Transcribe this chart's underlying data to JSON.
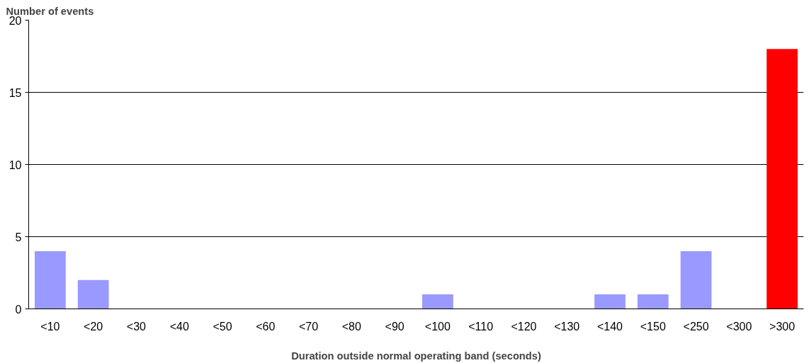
{
  "chart_data": {
    "type": "bar",
    "ylabel": "Number of events",
    "xlabel": "Duration outside normal operating band (seconds)",
    "categories": [
      "<10",
      "<20",
      "<30",
      "<40",
      "<50",
      "<60",
      "<70",
      "<80",
      "<90",
      "<100",
      "<110",
      "<120",
      "<130",
      "<140",
      "<150",
      "<250",
      "<300",
      ">300"
    ],
    "values": [
      4,
      2,
      0,
      0,
      0,
      0,
      0,
      0,
      0,
      1,
      0,
      0,
      0,
      1,
      1,
      4,
      0,
      18
    ],
    "colors": [
      "#9999ff",
      "#9999ff",
      "#9999ff",
      "#9999ff",
      "#9999ff",
      "#9999ff",
      "#9999ff",
      "#9999ff",
      "#9999ff",
      "#9999ff",
      "#9999ff",
      "#9999ff",
      "#9999ff",
      "#9999ff",
      "#9999ff",
      "#9999ff",
      "#9999ff",
      "#ff0000"
    ],
    "ylim": [
      0,
      20
    ],
    "yticks": [
      0,
      5,
      10,
      15,
      20
    ],
    "grid": "y"
  }
}
